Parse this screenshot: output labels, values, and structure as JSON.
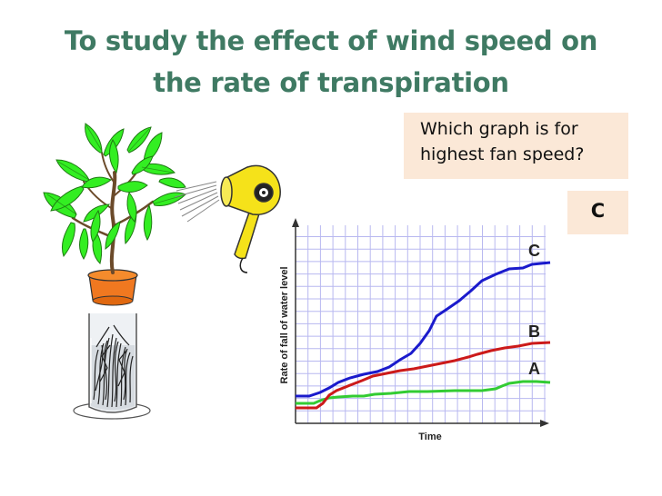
{
  "slide": {
    "title_line1": "To study the effect of wind speed on",
    "title_line2": "the rate of transpiration",
    "question_line1": "Which graph is for",
    "question_line2": "highest fan speed?",
    "answer": "C"
  },
  "graph": {
    "ylabel": "Rate of fall of water level",
    "xlabel": "Time",
    "curves": [
      {
        "label": "C",
        "color": "#1a1acc"
      },
      {
        "label": "B",
        "color": "#cc1a1a"
      },
      {
        "label": "A",
        "color": "#33cc33"
      }
    ]
  },
  "illustration": {
    "left": "potted-plant-in-water-tube",
    "right": "hair-dryer-fan"
  },
  "colors": {
    "title": "#3f7a63",
    "box_fill": "#fbe8d7",
    "grid": "#b8b8f0",
    "pot": "#f07820",
    "leaves": "#33ee22",
    "fan": "#f5e21a"
  }
}
